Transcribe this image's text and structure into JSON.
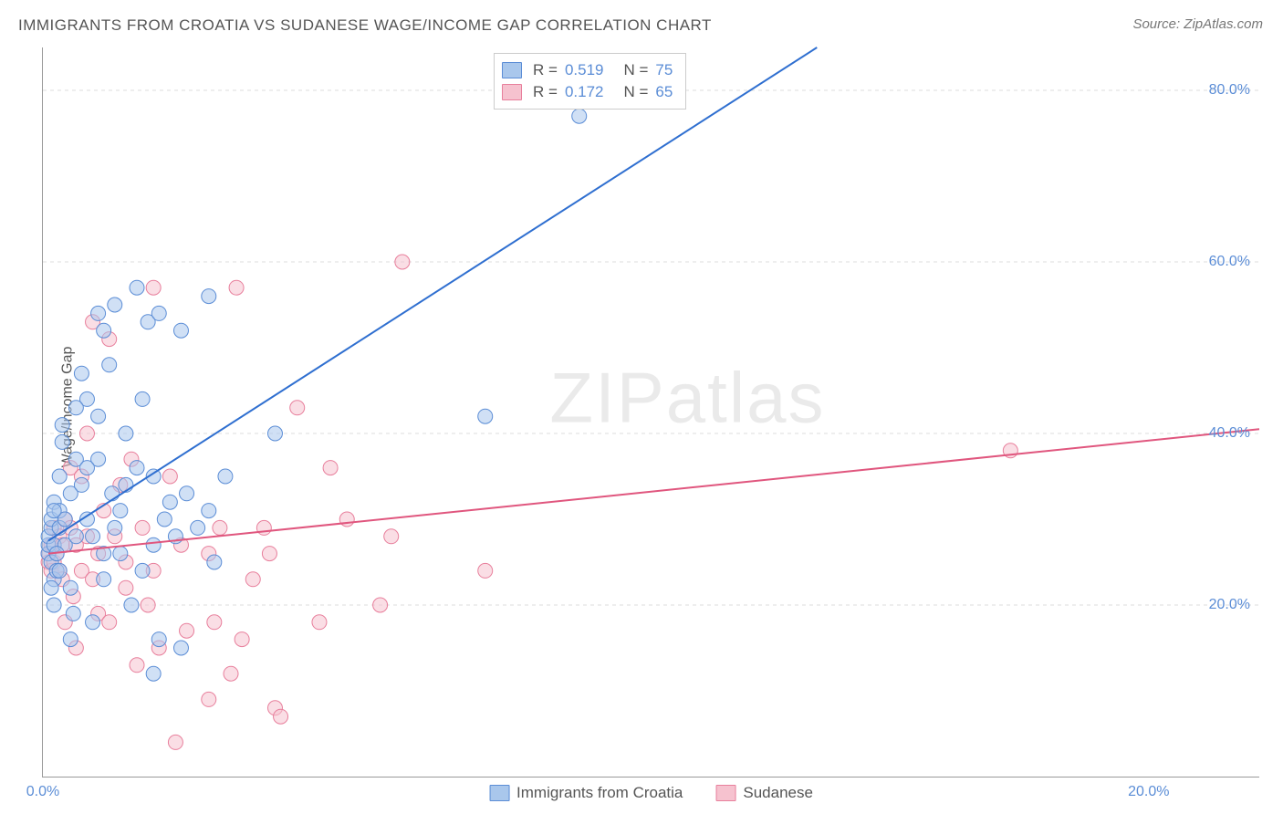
{
  "title": "IMMIGRANTS FROM CROATIA VS SUDANESE WAGE/INCOME GAP CORRELATION CHART",
  "source": "Source: ZipAtlas.com",
  "y_axis_label": "Wage/Income Gap",
  "watermark_a": "ZIP",
  "watermark_b": "atlas",
  "chart": {
    "type": "scatter-with-regression",
    "background_color": "#ffffff",
    "grid_color": "#dddddd",
    "axis_color": "#999999",
    "tick_color": "#5b8dd6",
    "xlim": [
      0,
      22
    ],
    "ylim": [
      0,
      85
    ],
    "x_ticks": [
      0,
      20
    ],
    "x_tick_labels": [
      "0.0%",
      "20.0%"
    ],
    "y_ticks": [
      20,
      40,
      60,
      80
    ],
    "y_tick_labels": [
      "20.0%",
      "40.0%",
      "60.0%",
      "80.0%"
    ],
    "marker_radius": 8,
    "marker_opacity": 0.55,
    "line_width": 2
  },
  "series_a": {
    "name": "Immigrants from Croatia",
    "fill": "#a9c7ec",
    "stroke": "#5b8dd6",
    "line_color": "#2f6fd0",
    "R_label": "R =",
    "R": "0.519",
    "N_label": "N =",
    "N": "75",
    "reg_line": {
      "x1": 0.1,
      "y1": 27.5,
      "x2": 14.0,
      "y2": 85.0
    },
    "points": [
      [
        0.1,
        26
      ],
      [
        0.1,
        27
      ],
      [
        0.1,
        28
      ],
      [
        0.15,
        29
      ],
      [
        0.15,
        30
      ],
      [
        0.15,
        25
      ],
      [
        0.2,
        27
      ],
      [
        0.2,
        32
      ],
      [
        0.2,
        23
      ],
      [
        0.25,
        24
      ],
      [
        0.2,
        20
      ],
      [
        0.3,
        29
      ],
      [
        0.3,
        31
      ],
      [
        0.3,
        35
      ],
      [
        0.35,
        39
      ],
      [
        0.35,
        41
      ],
      [
        0.4,
        30
      ],
      [
        0.4,
        27
      ],
      [
        0.5,
        33
      ],
      [
        0.5,
        22
      ],
      [
        0.5,
        16
      ],
      [
        0.55,
        19
      ],
      [
        0.6,
        28
      ],
      [
        0.6,
        37
      ],
      [
        0.7,
        47
      ],
      [
        0.8,
        44
      ],
      [
        0.8,
        30
      ],
      [
        0.9,
        18
      ],
      [
        1.0,
        54
      ],
      [
        1.0,
        42
      ],
      [
        1.1,
        52
      ],
      [
        1.1,
        26
      ],
      [
        1.2,
        48
      ],
      [
        1.25,
        33
      ],
      [
        1.3,
        55
      ],
      [
        1.3,
        29
      ],
      [
        1.4,
        31
      ],
      [
        1.5,
        34
      ],
      [
        1.5,
        40
      ],
      [
        1.6,
        20
      ],
      [
        1.7,
        36
      ],
      [
        1.7,
        57
      ],
      [
        1.8,
        44
      ],
      [
        1.8,
        24
      ],
      [
        1.9,
        53
      ],
      [
        2.0,
        35
      ],
      [
        2.0,
        27
      ],
      [
        2.0,
        12
      ],
      [
        2.1,
        54
      ],
      [
        2.1,
        16
      ],
      [
        2.2,
        30
      ],
      [
        2.3,
        32
      ],
      [
        2.4,
        28
      ],
      [
        2.5,
        52
      ],
      [
        2.5,
        15
      ],
      [
        2.6,
        33
      ],
      [
        2.8,
        29
      ],
      [
        3.0,
        31
      ],
      [
        3.0,
        56
      ],
      [
        3.1,
        25
      ],
      [
        3.3,
        35
      ],
      [
        4.2,
        40
      ],
      [
        8.0,
        42
      ],
      [
        9.7,
        77
      ],
      [
        0.7,
        34
      ],
      [
        0.9,
        28
      ],
      [
        1.0,
        37
      ],
      [
        1.1,
        23
      ],
      [
        0.3,
        24
      ],
      [
        0.25,
        26
      ],
      [
        0.15,
        22
      ],
      [
        0.2,
        31
      ],
      [
        0.6,
        43
      ],
      [
        0.8,
        36
      ],
      [
        1.4,
        26
      ]
    ]
  },
  "series_b": {
    "name": "Sudanese",
    "fill": "#f6c2cf",
    "stroke": "#e87f9c",
    "line_color": "#e0567e",
    "R_label": "R =",
    "R": "0.172",
    "N_label": "N =",
    "N": "65",
    "reg_line": {
      "x1": 0.1,
      "y1": 26.0,
      "x2": 22.0,
      "y2": 40.5
    },
    "points": [
      [
        0.1,
        25
      ],
      [
        0.1,
        26
      ],
      [
        0.15,
        27
      ],
      [
        0.15,
        24
      ],
      [
        0.2,
        25
      ],
      [
        0.2,
        29
      ],
      [
        0.25,
        26
      ],
      [
        0.3,
        24
      ],
      [
        0.3,
        28
      ],
      [
        0.35,
        23
      ],
      [
        0.35,
        27
      ],
      [
        0.4,
        30
      ],
      [
        0.4,
        18
      ],
      [
        0.5,
        36
      ],
      [
        0.5,
        29
      ],
      [
        0.55,
        21
      ],
      [
        0.6,
        27
      ],
      [
        0.6,
        15
      ],
      [
        0.7,
        35
      ],
      [
        0.7,
        24
      ],
      [
        0.8,
        28
      ],
      [
        0.8,
        40
      ],
      [
        0.9,
        23
      ],
      [
        0.9,
        53
      ],
      [
        1.0,
        19
      ],
      [
        1.0,
        26
      ],
      [
        1.1,
        31
      ],
      [
        1.2,
        18
      ],
      [
        1.2,
        51
      ],
      [
        1.3,
        28
      ],
      [
        1.4,
        34
      ],
      [
        1.5,
        22
      ],
      [
        1.5,
        25
      ],
      [
        1.6,
        37
      ],
      [
        1.7,
        13
      ],
      [
        1.8,
        29
      ],
      [
        1.9,
        20
      ],
      [
        2.0,
        24
      ],
      [
        2.0,
        57
      ],
      [
        2.1,
        15
      ],
      [
        2.3,
        35
      ],
      [
        2.5,
        27
      ],
      [
        2.6,
        17
      ],
      [
        3.0,
        26
      ],
      [
        3.1,
        18
      ],
      [
        3.2,
        29
      ],
      [
        3.4,
        12
      ],
      [
        3.5,
        57
      ],
      [
        3.6,
        16
      ],
      [
        3.8,
        23
      ],
      [
        4.0,
        29
      ],
      [
        4.1,
        26
      ],
      [
        4.2,
        8
      ],
      [
        4.3,
        7
      ],
      [
        4.6,
        43
      ],
      [
        5.0,
        18
      ],
      [
        5.2,
        36
      ],
      [
        5.5,
        30
      ],
      [
        6.1,
        20
      ],
      [
        6.3,
        28
      ],
      [
        6.5,
        60
      ],
      [
        8.0,
        24
      ],
      [
        2.4,
        4
      ],
      [
        3.0,
        9
      ],
      [
        17.5,
        38
      ]
    ]
  },
  "bottom_legend": {
    "a": "Immigrants from Croatia",
    "b": "Sudanese"
  }
}
